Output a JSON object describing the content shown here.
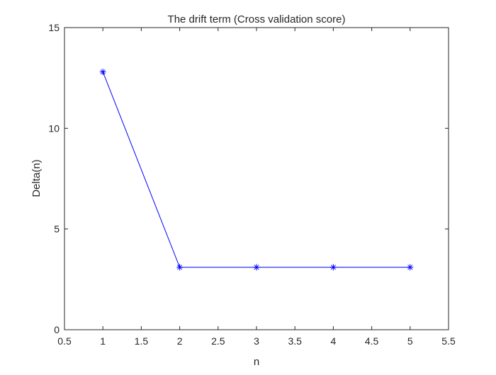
{
  "chart_data": {
    "type": "line",
    "title": "The drift term (Cross validation score)",
    "xlabel": "n",
    "ylabel": "Delta(n)",
    "xlim": [
      0.5,
      5.5
    ],
    "ylim": [
      0,
      15
    ],
    "xticks": [
      0.5,
      1,
      1.5,
      2,
      2.5,
      3,
      3.5,
      4,
      4.5,
      5,
      5.5
    ],
    "xtick_labels": [
      "0.5",
      "1",
      "1.5",
      "2",
      "2.5",
      "3",
      "3.5",
      "4",
      "4.5",
      "5",
      "5.5"
    ],
    "yticks": [
      0,
      5,
      10,
      15
    ],
    "ytick_labels": [
      "0",
      "5",
      "10",
      "15"
    ],
    "grid": false,
    "marker": "asterisk",
    "series": [
      {
        "color": "#0000ff",
        "x": [
          1,
          2,
          3,
          4,
          5
        ],
        "y": [
          12.8,
          3.1,
          3.1,
          3.1,
          3.1
        ]
      }
    ]
  }
}
